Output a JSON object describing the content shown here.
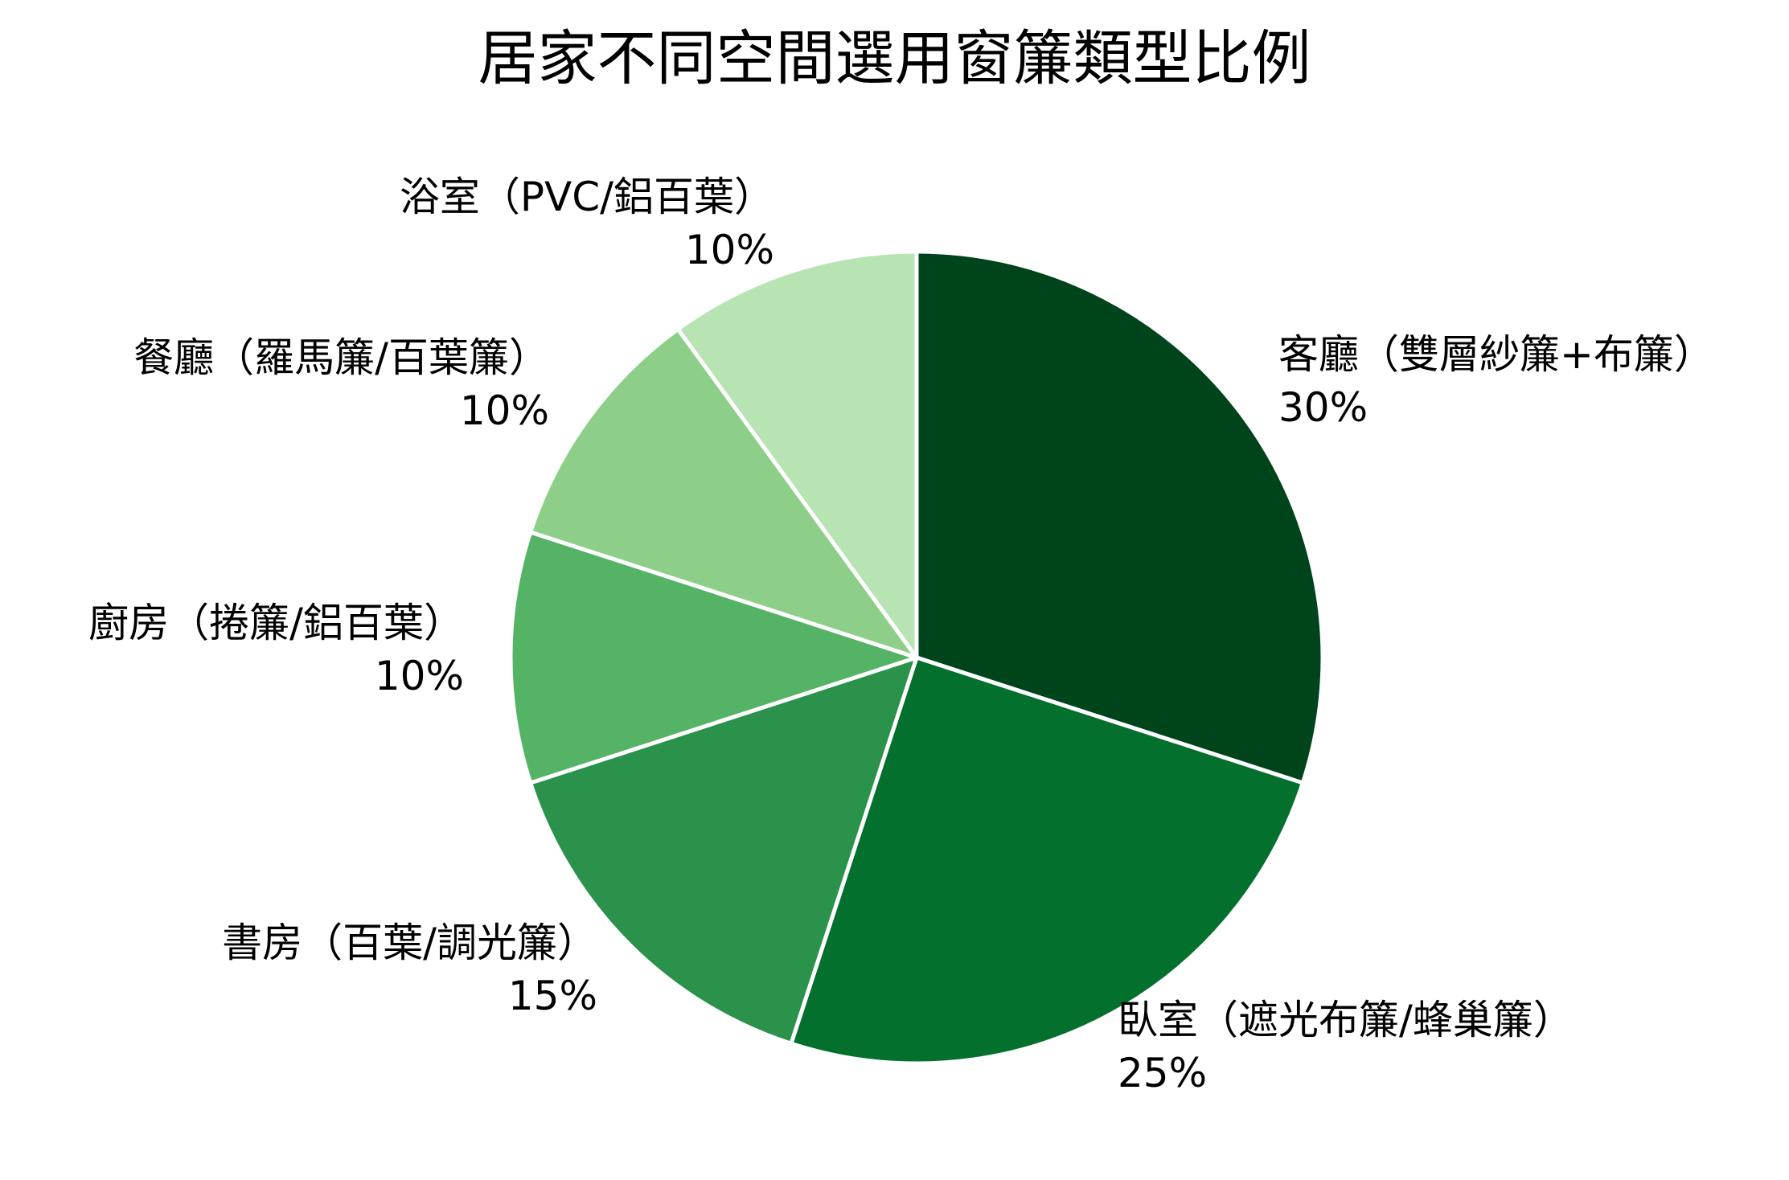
{
  "title": "居家不同空間選用窗簾類型比例",
  "chart_data": {
    "type": "pie",
    "title": "居家不同空間選用窗簾類型比例",
    "categories": [
      "客廳（雙層紗簾+布簾）",
      "臥室（遮光布簾/蜂巢簾）",
      "書房（百葉/調光簾）",
      "廚房（捲簾/鋁百葉）",
      "餐廳（羅馬簾/百葉簾）",
      "浴室（PVC/鋁百葉）"
    ],
    "values": [
      30,
      25,
      15,
      10,
      10,
      10
    ],
    "value_labels": [
      "30%",
      "25%",
      "15%",
      "10%",
      "10%",
      "10%"
    ],
    "colors": [
      "#00441b",
      "#03702d",
      "#2a924a",
      "#55b366",
      "#8dcf88",
      "#b8e3b2"
    ],
    "start_angle": "12 o'clock",
    "direction": "clockwise",
    "legend": "none (labels outside slices)",
    "slice_border_color": "#ffffff"
  },
  "labels": [
    {
      "category": "客廳（雙層紗簾+布簾）",
      "percent": "30%"
    },
    {
      "category": "臥室（遮光布簾/蜂巢簾）",
      "percent": "25%"
    },
    {
      "category": "書房（百葉/調光簾）",
      "percent": "15%"
    },
    {
      "category": "廚房（捲簾/鋁百葉）",
      "percent": "10%"
    },
    {
      "category": "餐廳（羅馬簾/百葉簾）",
      "percent": "10%"
    },
    {
      "category": "浴室（PVC/鋁百葉）",
      "percent": "10%"
    }
  ]
}
